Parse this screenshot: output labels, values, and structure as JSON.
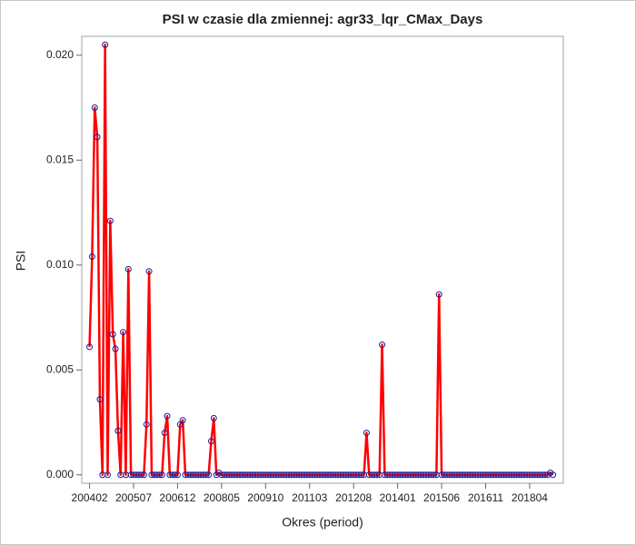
{
  "chart_data": {
    "type": "line",
    "title": "PSI w czasie dla zmiennej: agr33_lqr_CMax_Days",
    "x_label": "Okres (period)",
    "y_label": "PSI",
    "x": [
      "200402",
      "200403",
      "200404",
      "200405",
      "200406",
      "200407",
      "200408",
      "200409",
      "200410",
      "200411",
      "200412",
      "200501",
      "200502",
      "200503",
      "200504",
      "200505",
      "200506",
      "200507",
      "200508",
      "200509",
      "200510",
      "200511",
      "200512",
      "200601",
      "200602",
      "200603",
      "200604",
      "200605",
      "200606",
      "200607",
      "200608",
      "200609",
      "200610",
      "200611",
      "200612",
      "200701",
      "200702",
      "200703",
      "200704",
      "200705",
      "200706",
      "200707",
      "200708",
      "200709",
      "200710",
      "200711",
      "200712",
      "200801",
      "200802",
      "200803",
      "200804",
      "200805",
      "200806",
      "200807",
      "200808",
      "200809",
      "200810",
      "200811",
      "200812",
      "200901",
      "200902",
      "200903",
      "200904",
      "200905",
      "200906",
      "200907",
      "200908",
      "200909",
      "200910",
      "200911",
      "200912",
      "201001",
      "201002",
      "201003",
      "201004",
      "201005",
      "201006",
      "201007",
      "201008",
      "201009",
      "201010",
      "201011",
      "201012",
      "201101",
      "201102",
      "201103",
      "201104",
      "201105",
      "201106",
      "201107",
      "201108",
      "201109",
      "201110",
      "201111",
      "201112",
      "201201",
      "201202",
      "201203",
      "201204",
      "201205",
      "201206",
      "201207",
      "201208",
      "201209",
      "201210",
      "201211",
      "201212",
      "201301",
      "201302",
      "201303",
      "201304",
      "201305",
      "201306",
      "201307",
      "201308",
      "201309",
      "201310",
      "201311",
      "201312",
      "201401",
      "201402",
      "201403",
      "201404",
      "201405",
      "201406",
      "201407",
      "201408",
      "201409",
      "201410",
      "201411",
      "201412",
      "201501",
      "201502",
      "201503",
      "201504",
      "201505",
      "201506",
      "201507",
      "201508",
      "201509",
      "201510",
      "201511",
      "201512",
      "201601",
      "201602",
      "201603",
      "201604",
      "201605",
      "201606",
      "201607",
      "201608",
      "201609",
      "201610",
      "201611",
      "201612",
      "201701",
      "201702",
      "201703",
      "201704",
      "201705",
      "201706",
      "201707",
      "201708",
      "201709",
      "201710",
      "201711",
      "201712",
      "201801",
      "201802",
      "201803",
      "201804",
      "201805",
      "201806",
      "201807",
      "201808",
      "201809",
      "201810",
      "201811",
      "201812",
      "201901"
    ],
    "values": [
      0.0061,
      0.0104,
      0.0175,
      0.0161,
      0.0036,
      0,
      0.0205,
      0,
      0.0121,
      0.0067,
      0.006,
      0.0021,
      0,
      0.0068,
      0,
      0.0098,
      0,
      0,
      0,
      0,
      0,
      0,
      0.0024,
      0.0097,
      0,
      0,
      0,
      0,
      0,
      0.002,
      0.0028,
      0,
      0,
      0,
      0,
      0.0024,
      0.0026,
      0,
      0,
      0,
      0,
      0,
      0,
      0,
      0,
      0,
      0,
      0.0016,
      0.0027,
      0,
      0.0001,
      0,
      0,
      0,
      0,
      0,
      0,
      0,
      0,
      0,
      0,
      0,
      0,
      0,
      0,
      0,
      0,
      0,
      0,
      0,
      0,
      0,
      0,
      0,
      0,
      0,
      0,
      0,
      0,
      0,
      0,
      0,
      0,
      0,
      0,
      0,
      0,
      0,
      0,
      0,
      0,
      0,
      0,
      0,
      0,
      0,
      0,
      0,
      0,
      0,
      0,
      0,
      0,
      0,
      0,
      0,
      0,
      0.002,
      0,
      0,
      0,
      0,
      0,
      0.0062,
      0,
      0,
      0,
      0,
      0,
      0,
      0,
      0,
      0,
      0,
      0,
      0,
      0,
      0,
      0,
      0,
      0,
      0,
      0,
      0,
      0,
      0.0086,
      0,
      0,
      0,
      0,
      0,
      0,
      0,
      0,
      0,
      0,
      0,
      0,
      0,
      0,
      0,
      0,
      0,
      0,
      0,
      0,
      0,
      0,
      0,
      0,
      0,
      0,
      0,
      0,
      0,
      0,
      0,
      0,
      0,
      0,
      0,
      0,
      0,
      0,
      0,
      0,
      0,
      0,
      0.0001,
      0
    ],
    "color": "#ff0000",
    "marker_color": "#1c1c9c",
    "xlim": [
      "200311",
      "201905"
    ],
    "xticks": [
      "200402",
      "200507",
      "200612",
      "200805",
      "200910",
      "201103",
      "201208",
      "201401",
      "201506",
      "201611",
      "201804"
    ],
    "ylim": [
      -0.0004,
      0.0209
    ],
    "yticks": [
      {
        "value": 0,
        "label": "0.000"
      },
      0.005,
      {
        "value": 0.01,
        "label": "0.010"
      },
      0.015,
      {
        "value": 0.02,
        "label": "0.020"
      }
    ]
  }
}
